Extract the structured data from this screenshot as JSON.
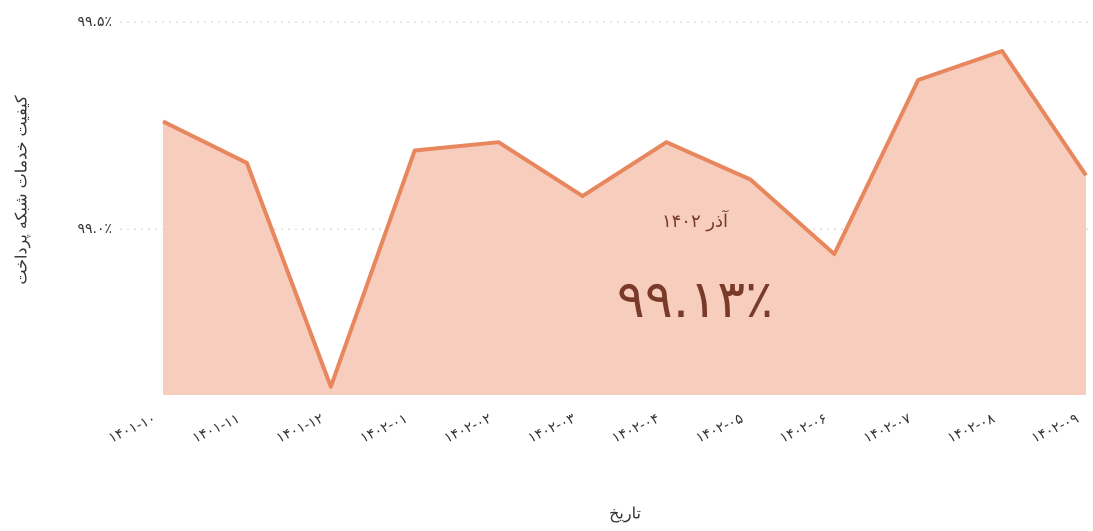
{
  "chart_data": {
    "type": "area",
    "y_label": "کیفیت خدمات شبکه پرداخت",
    "x_label": "تاریخ",
    "categories": [
      "۱۴۰۱-۱۰",
      "۱۴۰۱-۱۱",
      "۱۴۰۱-۱۲",
      "۱۴۰۲-۰۱",
      "۱۴۰۲-۰۲",
      "۱۴۰۲-۰۳",
      "۱۴۰۲-۰۴",
      "۱۴۰۲-۰۵",
      "۱۴۰۲-۰۶",
      "۱۴۰۲-۰۷",
      "۱۴۰۲-۰۸",
      "۱۴۰۲-۰۹"
    ],
    "series": [
      {
        "name": "کیفیت خدمات شبکه پرداخت",
        "color": "#e8875e",
        "fill": "#f7cdbe",
        "values": [
          99.26,
          99.16,
          98.62,
          99.19,
          99.21,
          99.08,
          99.21,
          99.12,
          98.94,
          99.36,
          99.43,
          99.13
        ]
      }
    ],
    "ylim": [
      98.6,
      99.5
    ],
    "yticks": [
      {
        "value": 99.0,
        "label": "۹۹.۰٪"
      },
      {
        "value": 99.5,
        "label": "۹۹.۵٪"
      }
    ],
    "grid": true,
    "annotation": {
      "date": "آذر ۱۴۰۲",
      "value": "۹۹.۱۳٪"
    }
  }
}
